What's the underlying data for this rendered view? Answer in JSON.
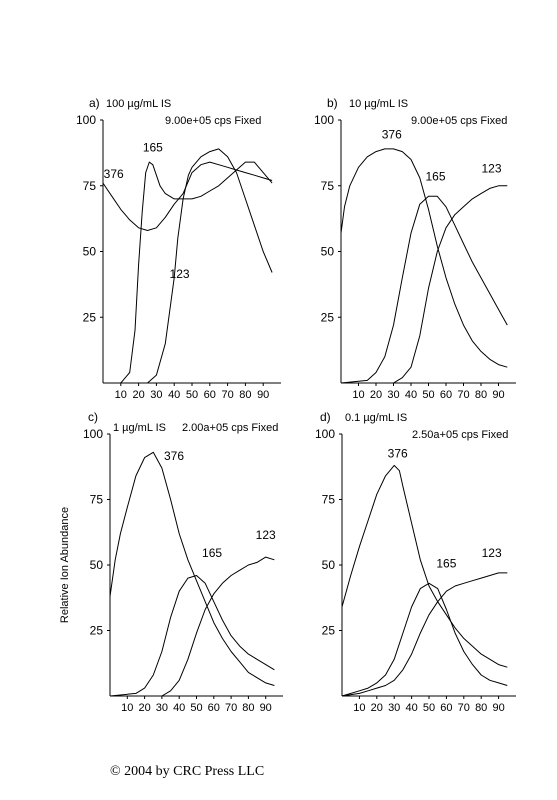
{
  "ylabel": "Relative Ion Abundance",
  "footer": "© 2004 by CRC Press LLC",
  "chart_data": [
    {
      "type": "line",
      "panel_label": "a)",
      "title": "100 µg/mL IS",
      "subtitle": "9.00e+05 cps Fixed",
      "xlim": [
        0,
        100
      ],
      "ylim": [
        0,
        100
      ],
      "x_ticks": [
        10,
        20,
        30,
        40,
        50,
        60,
        70,
        80,
        90
      ],
      "y_ticks": [
        25,
        50,
        75,
        100
      ],
      "series": [
        {
          "name": "376",
          "label_at": [
            6,
            78
          ],
          "x": [
            0,
            5,
            10,
            15,
            20,
            25,
            30,
            35,
            40,
            45,
            50,
            55,
            60,
            65,
            70,
            75,
            80,
            85,
            90,
            95
          ],
          "y": [
            76,
            71,
            66,
            62,
            59,
            58,
            59,
            63,
            68,
            72,
            80,
            83,
            84,
            83,
            82,
            81,
            80,
            79,
            78,
            77
          ]
        },
        {
          "name": "165",
          "label_at": [
            28,
            88
          ],
          "x": [
            0,
            10,
            15,
            18,
            20,
            22,
            24,
            26,
            28,
            30,
            32,
            35,
            40,
            45,
            50,
            55,
            60,
            65,
            70,
            75,
            80,
            85,
            90,
            95
          ],
          "y": [
            0,
            0,
            4,
            20,
            45,
            65,
            80,
            84,
            83,
            79,
            75,
            72,
            70,
            70,
            70,
            71,
            73,
            75,
            78,
            81,
            84,
            84,
            80,
            76
          ]
        },
        {
          "name": "123",
          "label_at": [
            43,
            40
          ],
          "x": [
            0,
            20,
            25,
            30,
            35,
            40,
            42,
            45,
            48,
            50,
            55,
            60,
            65,
            70,
            75,
            80,
            85,
            90,
            95
          ],
          "y": [
            0,
            0,
            0,
            3,
            15,
            40,
            55,
            70,
            79,
            82,
            86,
            88,
            89,
            86,
            80,
            70,
            60,
            50,
            42
          ]
        }
      ]
    },
    {
      "type": "line",
      "panel_label": "b)",
      "title": "10 µg/mL IS",
      "subtitle": "9.00e+05 cps Fixed",
      "xlim": [
        0,
        100
      ],
      "ylim": [
        0,
        100
      ],
      "x_ticks": [
        10,
        20,
        30,
        40,
        50,
        60,
        70,
        80,
        90
      ],
      "y_ticks": [
        25,
        50,
        75,
        100
      ],
      "series": [
        {
          "name": "376",
          "label_at": [
            29,
            93
          ],
          "x": [
            0,
            2,
            5,
            10,
            15,
            20,
            25,
            30,
            35,
            40,
            45,
            50,
            55,
            60,
            65,
            70,
            75,
            80,
            85,
            90,
            95
          ],
          "y": [
            57,
            67,
            75,
            82,
            86,
            88,
            89,
            89,
            88,
            85,
            78,
            66,
            52,
            40,
            30,
            22,
            16,
            12,
            9,
            7,
            6
          ]
        },
        {
          "name": "165",
          "label_at": [
            54,
            77
          ],
          "x": [
            0,
            15,
            20,
            25,
            30,
            35,
            40,
            45,
            50,
            55,
            60,
            65,
            70,
            75,
            80,
            85,
            90,
            95
          ],
          "y": [
            0,
            1,
            4,
            10,
            22,
            40,
            57,
            68,
            71,
            71,
            67,
            60,
            53,
            46,
            40,
            34,
            28,
            22
          ]
        },
        {
          "name": "123",
          "label_at": [
            86,
            80
          ],
          "x": [
            0,
            30,
            35,
            40,
            45,
            50,
            55,
            60,
            65,
            70,
            75,
            80,
            85,
            90,
            95
          ],
          "y": [
            0,
            0,
            2,
            6,
            18,
            36,
            50,
            59,
            64,
            67,
            70,
            72,
            74,
            75,
            75
          ]
        }
      ]
    },
    {
      "type": "line",
      "panel_label": "c)",
      "title": "1 µg/mL IS",
      "subtitle": "2.00a+05 cps Fixed",
      "xlim": [
        0,
        100
      ],
      "ylim": [
        0,
        100
      ],
      "x_ticks": [
        10,
        20,
        30,
        40,
        50,
        60,
        70,
        80,
        90
      ],
      "y_ticks": [
        25,
        50,
        75,
        100
      ],
      "series": [
        {
          "name": "376",
          "label_at": [
            37,
            90
          ],
          "x": [
            0,
            3,
            6,
            10,
            15,
            20,
            25,
            30,
            35,
            40,
            45,
            50,
            55,
            60,
            65,
            70,
            75,
            80,
            85,
            90,
            95
          ],
          "y": [
            38,
            52,
            62,
            72,
            84,
            91,
            93,
            87,
            75,
            62,
            52,
            44,
            36,
            28,
            22,
            17,
            13,
            9,
            7,
            5,
            4
          ]
        },
        {
          "name": "165",
          "label_at": [
            59,
            53
          ],
          "x": [
            0,
            15,
            20,
            25,
            30,
            35,
            40,
            45,
            50,
            55,
            60,
            65,
            70,
            75,
            80,
            85,
            90,
            95
          ],
          "y": [
            0,
            1,
            3,
            8,
            17,
            30,
            40,
            45,
            46,
            43,
            36,
            29,
            23,
            19,
            16,
            14,
            12,
            10
          ]
        },
        {
          "name": "123",
          "label_at": [
            90,
            60
          ],
          "x": [
            0,
            30,
            35,
            40,
            45,
            50,
            55,
            60,
            65,
            70,
            75,
            80,
            85,
            90,
            95
          ],
          "y": [
            0,
            0,
            2,
            6,
            14,
            24,
            33,
            39,
            43,
            46,
            48,
            50,
            51,
            53,
            52
          ]
        }
      ]
    },
    {
      "type": "line",
      "panel_label": "d)",
      "title": "0.1 µg/mL IS",
      "subtitle": "2.50a+05 cps Fixed",
      "xlim": [
        0,
        100
      ],
      "ylim": [
        0,
        100
      ],
      "x_ticks": [
        10,
        20,
        30,
        40,
        50,
        60,
        70,
        80,
        90
      ],
      "y_ticks": [
        25,
        50,
        75,
        100
      ],
      "series": [
        {
          "name": "376",
          "label_at": [
            32,
            91
          ],
          "x": [
            0,
            5,
            10,
            15,
            20,
            25,
            30,
            33,
            35,
            40,
            45,
            50,
            55,
            60,
            65,
            70,
            75,
            80,
            85,
            90,
            95
          ],
          "y": [
            34,
            46,
            57,
            67,
            77,
            84,
            88,
            86,
            80,
            66,
            52,
            42,
            36,
            31,
            26,
            22,
            19,
            16,
            14,
            12,
            11
          ]
        },
        {
          "name": "165",
          "label_at": [
            60,
            49
          ],
          "x": [
            0,
            10,
            15,
            20,
            25,
            30,
            35,
            40,
            45,
            50,
            55,
            60,
            65,
            70,
            75,
            80,
            85,
            90,
            95
          ],
          "y": [
            0,
            2,
            3,
            5,
            8,
            14,
            24,
            34,
            41,
            43,
            41,
            33,
            24,
            17,
            12,
            8,
            6,
            5,
            4
          ]
        },
        {
          "name": "123",
          "label_at": [
            86,
            53
          ],
          "x": [
            0,
            10,
            15,
            20,
            25,
            30,
            35,
            40,
            45,
            50,
            55,
            60,
            65,
            70,
            75,
            80,
            85,
            90,
            95
          ],
          "y": [
            0,
            1,
            2,
            3,
            4,
            6,
            10,
            16,
            24,
            31,
            36,
            40,
            42,
            43,
            44,
            45,
            46,
            47,
            47
          ]
        }
      ]
    }
  ]
}
